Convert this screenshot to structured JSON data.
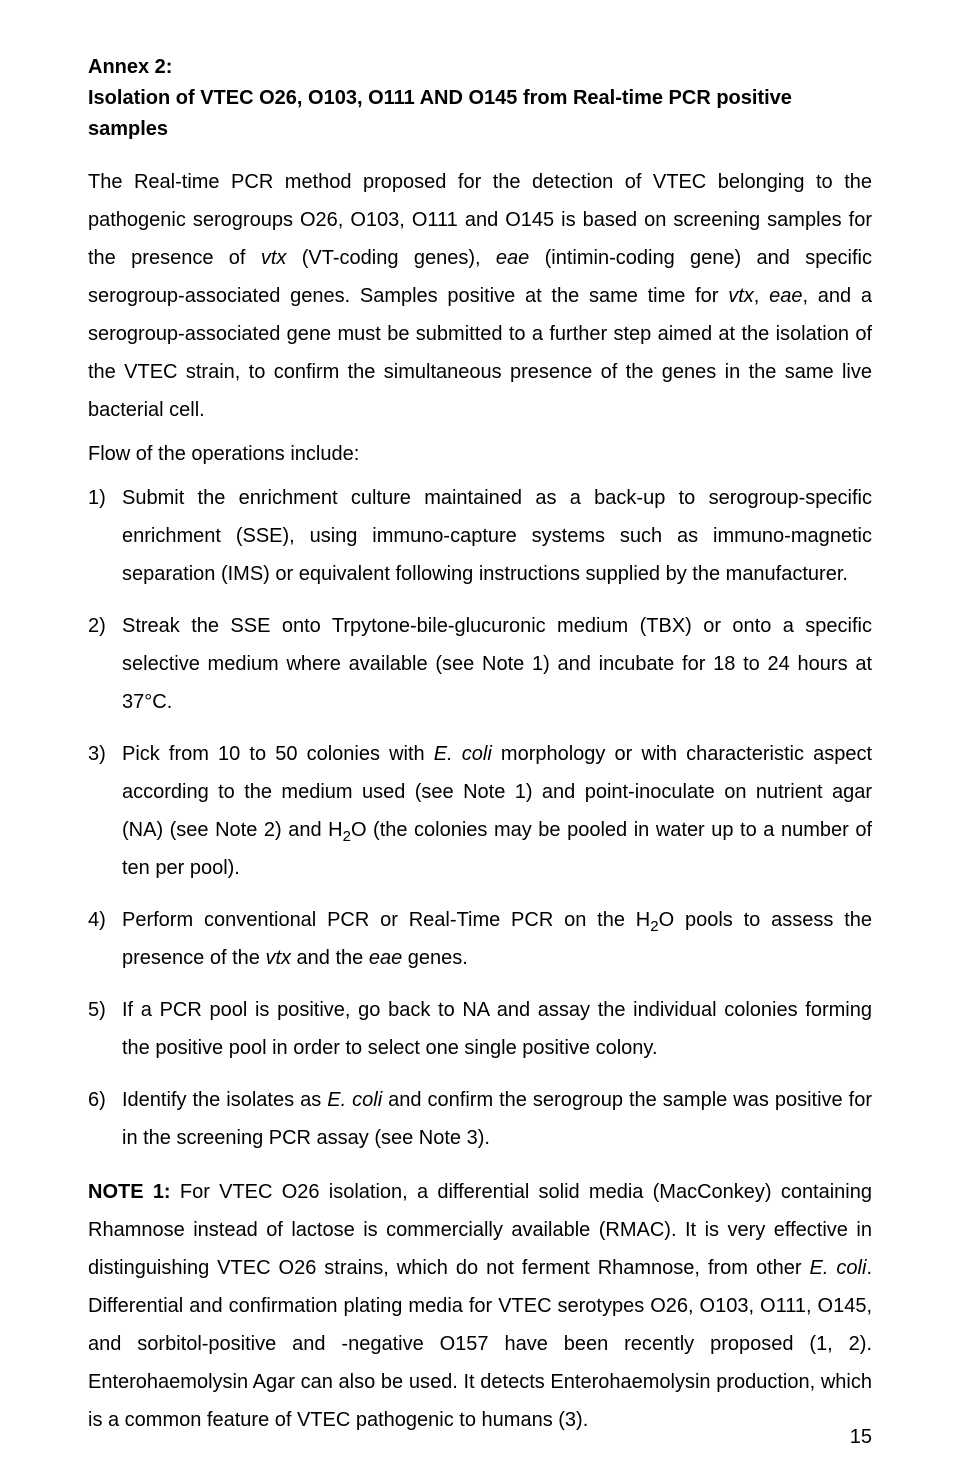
{
  "title": {
    "annex": "Annex 2:",
    "heading": "Isolation of VTEC O26, O103, O111 AND O145 from Real-time PCR positive samples"
  },
  "intro": {
    "p1a": "The Real-time PCR method proposed for the detection of VTEC belonging to the pathogenic serogroups O26, O103, O111 and O145 is based on screening samples for the presence of ",
    "p1b": "vtx",
    "p1c": " (VT-coding genes), ",
    "p1d": "eae",
    "p1e": " (intimin-coding gene) and specific serogroup-associated genes. Samples positive at the same time for ",
    "p1f": "vtx",
    "p1g": ", ",
    "p1h": "eae",
    "p1i": ", and a serogroup-associated gene must be submitted to a further step aimed at the isolation of the VTEC strain, to confirm the simultaneous presence of the genes in the same live bacterial cell."
  },
  "flow_label": "Flow of the operations include:",
  "steps": [
    {
      "num": "1)",
      "text": "Submit the enrichment culture maintained as a back-up to serogroup-specific enrichment (SSE), using immuno-capture systems such as immuno-magnetic separation (IMS) or equivalent following instructions supplied by the manufacturer."
    },
    {
      "num": "2)",
      "text": "Streak the SSE onto Trpytone-bile-glucuronic medium (TBX) or onto a specific selective medium where available (see Note 1) and incubate for 18 to 24 hours at 37°C."
    },
    {
      "num": "3)",
      "pre": "Pick from 10 to 50 colonies with ",
      "it1": "E. coli",
      "mid": " morphology or with characteristic aspect according to the medium used (see Note 1) and point-inoculate on nutrient agar (NA) (see Note 2) and H",
      "sub": "2",
      "post": "O (the colonies may be pooled in water up to a number of ten per pool)."
    },
    {
      "num": "4)",
      "pre": "Perform conventional PCR or Real-Time PCR on the H",
      "sub": "2",
      "mid": "O pools to assess the presence of the ",
      "it1": "vtx",
      "mid2": " and the ",
      "it2": "eae",
      "post": " genes."
    },
    {
      "num": "5)",
      "text": "If a PCR pool is positive, go back to NA and assay the individual colonies forming the positive pool in order to select one single positive colony."
    },
    {
      "num": "6)",
      "pre": "Identify the isolates as ",
      "it1": "E. coli",
      "post": " and confirm the serogroup the sample was positive for in the screening PCR assay (see Note 3)."
    }
  ],
  "note": {
    "label": "NOTE 1:",
    "a": " For VTEC O26 isolation, a differential solid media (MacConkey) containing Rhamnose instead of lactose is commercially available (RMAC). It is very effective in distinguishing VTEC O26 strains, which do not ferment Rhamnose, from other ",
    "it": "E. coli",
    "b": ". Differential and confirmation plating media for VTEC serotypes O26, O103, O111, O145, and sorbitol-positive and -negative O157 have been recently proposed (1, 2). Enterohaemolysin Agar can also be used. It detects Enterohaemolysin production, which is a common feature of VTEC pathogenic to humans (3)."
  },
  "page_number": "15"
}
